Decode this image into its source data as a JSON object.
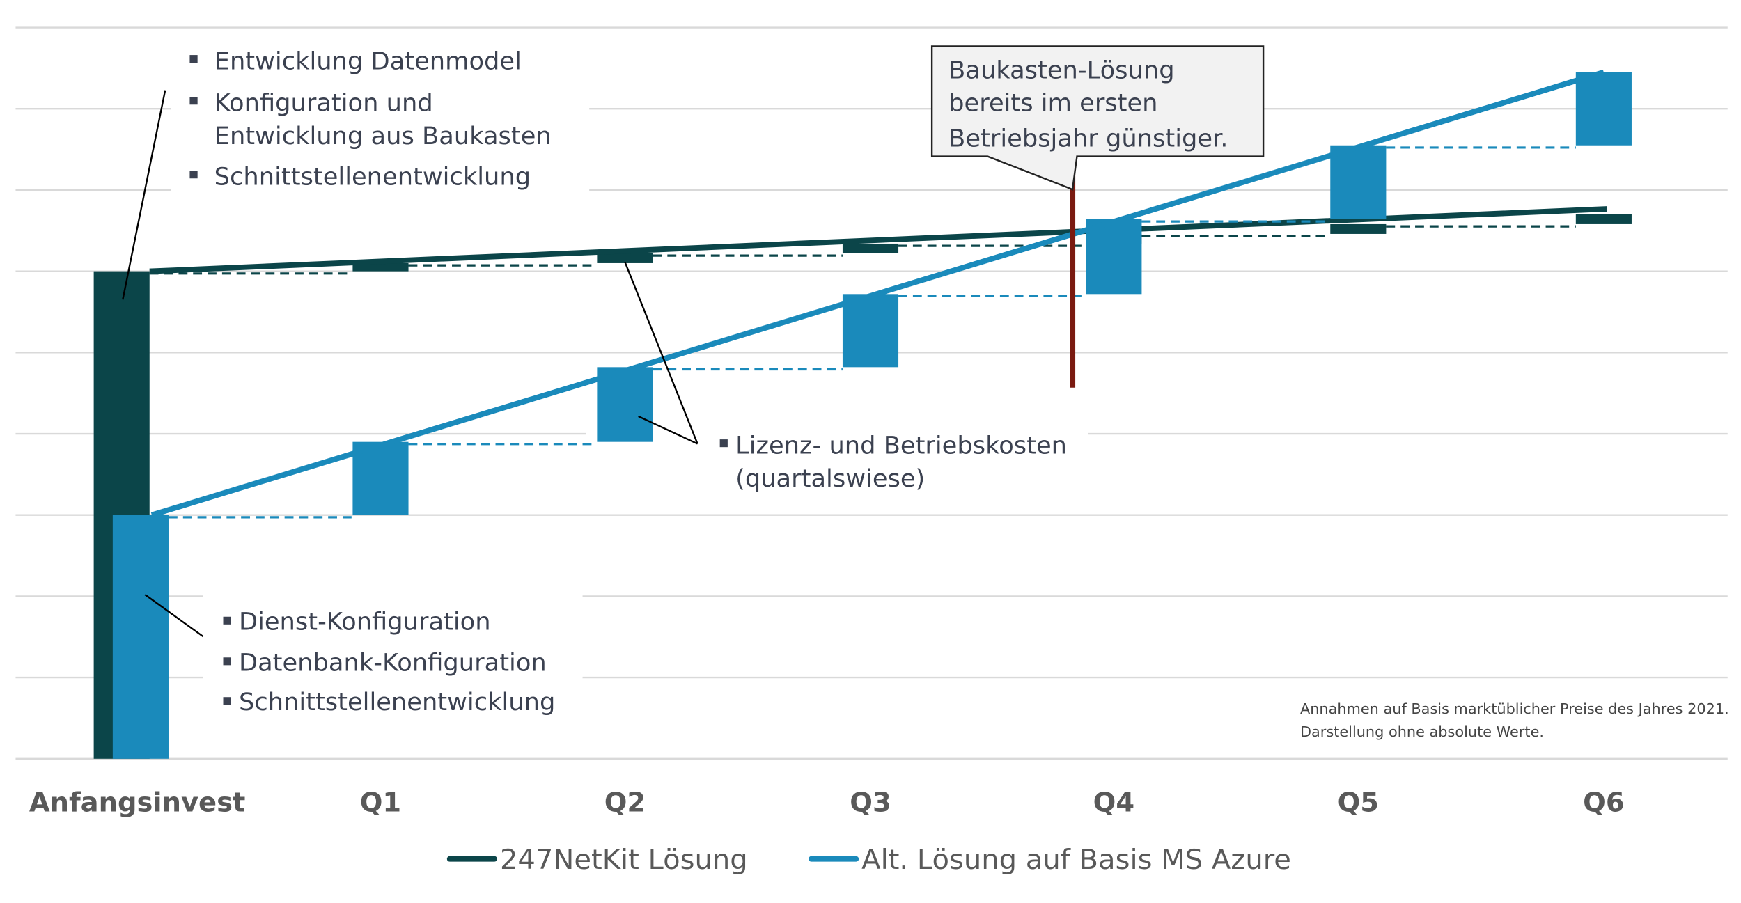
{
  "chart_data": {
    "type": "waterfall-line",
    "categories": [
      "Anfangsinvest",
      "Q1",
      "Q2",
      "Q3",
      "Q4",
      "Q5",
      "Q6"
    ],
    "ylim": [
      0,
      9
    ],
    "grid": true,
    "legend_placement": "bottom",
    "series": [
      {
        "name": "247NetKit Lösung",
        "color": "#0b4549",
        "values": [
          6.0,
          6.1,
          6.22,
          6.34,
          6.46,
          6.58,
          6.7
        ]
      },
      {
        "name": "Alt. Lösung auf Basis MS Azure",
        "color": "#1a8abb",
        "values": [
          3.0,
          3.9,
          4.82,
          5.72,
          6.64,
          7.55,
          8.45
        ]
      }
    ],
    "annotations": {
      "top_left": [
        "Entwicklung Datenmodel",
        "Konfiguration und Entwicklung aus Baukasten",
        "Schnittstellenentwicklung"
      ],
      "bottom_left": [
        "Dienst-Konfiguration",
        "Datenbank-Konfiguration",
        "Schnittstellenentwicklung"
      ],
      "middle": [
        "Lizenz- und Betriebskosten (quartalswiese)"
      ],
      "callout": "Baukasten-Lösung bereits im ersten Betriebsjahr günstiger.",
      "breakeven_color": "#7a1a10"
    },
    "footnote": [
      "Annahmen auf Basis marktüblicher Preise des Jahres 2021.",
      "Darstellung ohne absolute Werte."
    ]
  },
  "labels": {
    "tl1": "Entwicklung Datenmodel",
    "tl2a": "Konfiguration und",
    "tl2b": "Entwicklung aus Baukasten",
    "tl3": "Schnittstellenentwicklung",
    "bl1": "Dienst-Konfiguration",
    "bl2": "Datenbank-Konfiguration",
    "bl3": "Schnittstellenentwicklung",
    "mid1": "Lizenz- und Betriebskosten",
    "mid2": "(quartalswiese)",
    "c1": "Baukasten-Lösung",
    "c2": "bereits im ersten",
    "c3": "Betriebsjahr günstiger."
  }
}
